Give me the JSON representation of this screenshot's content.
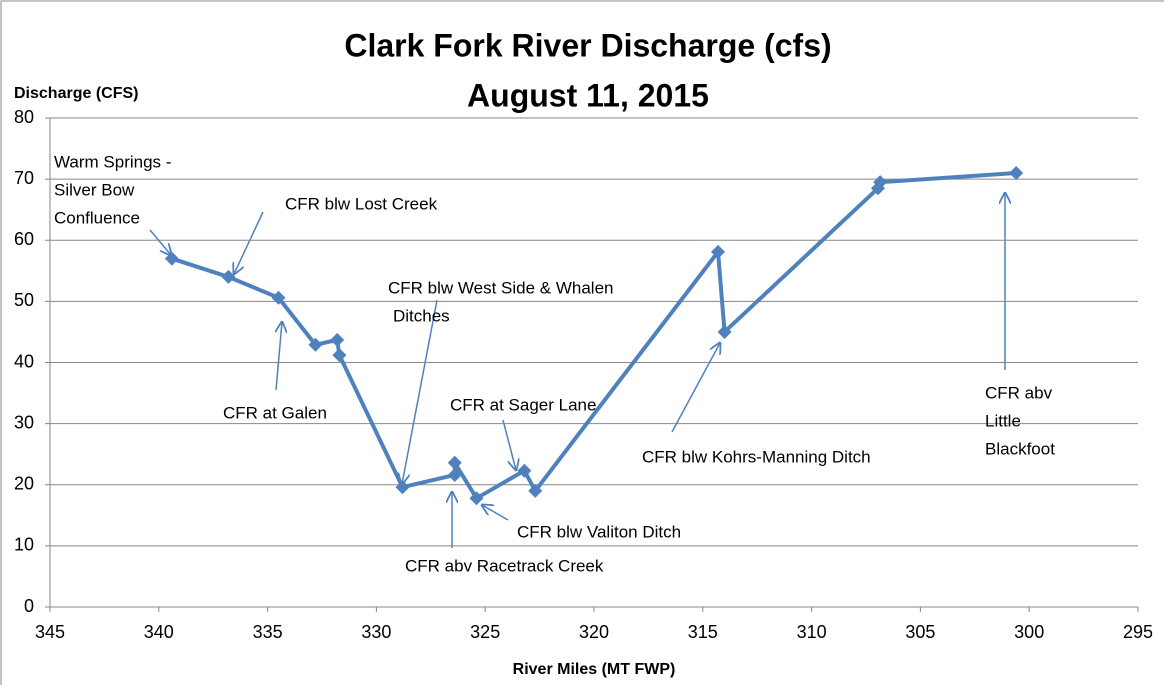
{
  "chart_data": {
    "type": "line",
    "title": "Clark Fork River Discharge (cfs)",
    "subtitle": "August 11, 2015",
    "y_label": "Discharge (CFS)",
    "x_label": "River Miles (MT FWP)",
    "color": "#4f81bd",
    "x": [
      339.4,
      336.8,
      334.5,
      332.8,
      331.8,
      331.7,
      328.8,
      326.4,
      326.4,
      325.4,
      323.2,
      322.7,
      314.3,
      314.0,
      306.95,
      306.85,
      300.6
    ],
    "values": [
      57,
      54,
      50.6,
      42.9,
      43.7,
      41.2,
      19.6,
      21.6,
      23.6,
      17.8,
      22.3,
      19.0,
      58.1,
      45.0,
      68.5,
      69.5,
      71.0
    ],
    "xlim": [
      345,
      295
    ],
    "xticks": [
      345,
      340,
      335,
      330,
      325,
      320,
      315,
      310,
      305,
      300,
      295
    ],
    "ylim": [
      0,
      80
    ],
    "yticks": [
      0,
      10,
      20,
      30,
      40,
      50,
      60,
      70,
      80
    ],
    "grid": true,
    "annotations": [
      [
        "Warm Springs -",
        "Silver Bow",
        "Confluence"
      ],
      [
        "CFR blw Lost Creek"
      ],
      [
        "CFR at Galen"
      ],
      [
        "CFR blw West Side & Whalen",
        "Ditches"
      ],
      [
        "CFR at Sager Lane"
      ],
      [
        "CFR abv Racetrack Creek"
      ],
      [
        "CFR blw Valiton Ditch"
      ],
      [
        "CFR blw Kohrs-Manning Ditch"
      ],
      [
        "CFR abv",
        "Little",
        "Blackfoot"
      ]
    ]
  }
}
